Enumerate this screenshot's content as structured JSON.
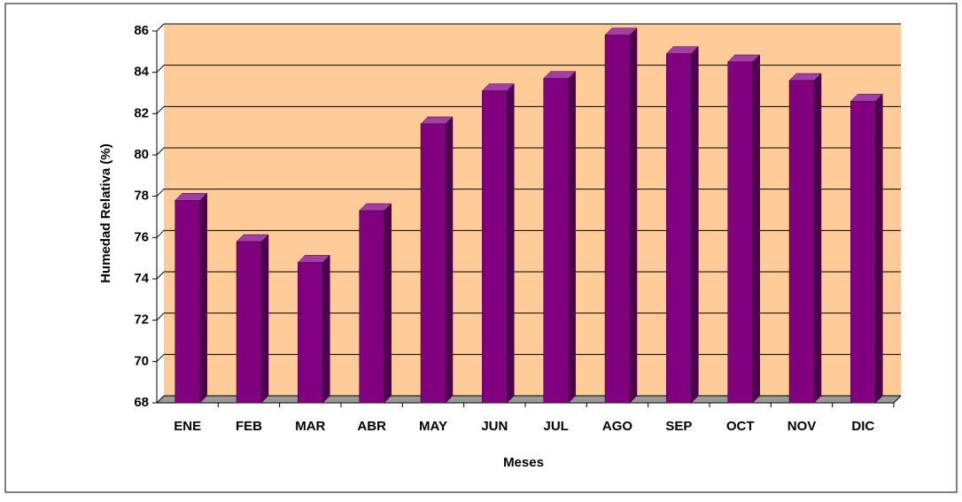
{
  "chart_data": {
    "type": "bar",
    "y_label": "Humedad Relativa (%)",
    "x_label": "Meses",
    "categories": [
      "ENE",
      "FEB",
      "MAR",
      "ABR",
      "MAY",
      "JUN",
      "JUL",
      "AGO",
      "SEP",
      "OCT",
      "NOV",
      "DIC"
    ],
    "values": [
      77.8,
      75.8,
      74.8,
      77.3,
      81.5,
      83.1,
      83.7,
      85.8,
      84.9,
      84.5,
      83.6,
      82.6
    ],
    "color": "#800080",
    "ylim": [
      68,
      86
    ],
    "yticks": [
      68,
      70,
      72,
      74,
      76,
      78,
      80,
      82,
      84,
      86
    ],
    "grid": true
  }
}
